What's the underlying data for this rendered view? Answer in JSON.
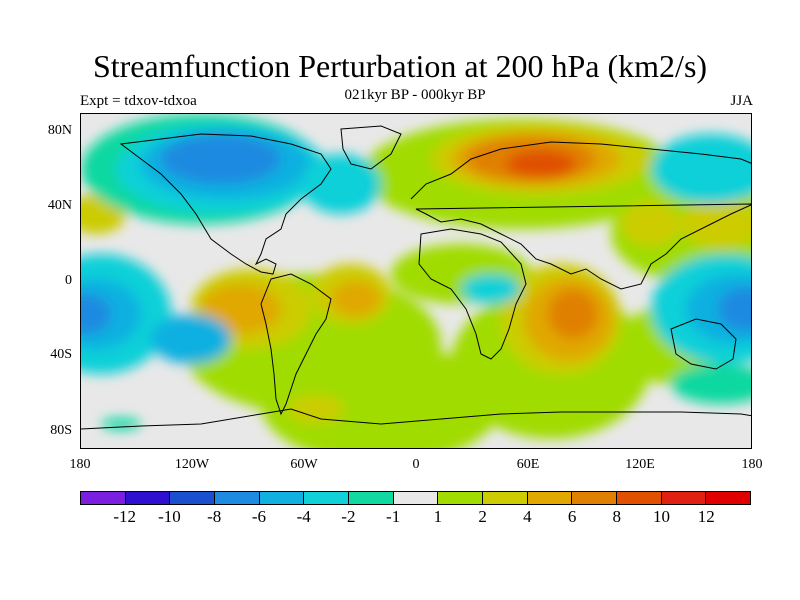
{
  "title": "Streamfunction Perturbation at 200 hPa (km2/s)",
  "subtitle": "021kyr BP - 000kyr BP",
  "left_label": "Expt = tdxov-tdxoa",
  "right_label": "JJA",
  "lat_labels": [
    "80N",
    "40N",
    "0",
    "40S",
    "80S"
  ],
  "lon_labels": [
    "180",
    "120W",
    "60W",
    "0",
    "60E",
    "120E",
    "180"
  ],
  "colorbar": {
    "colors": [
      "#7a1fe0",
      "#3010d0",
      "#1a50d0",
      "#1e8ae0",
      "#10b0e0",
      "#10d0d8",
      "#10d8a0",
      "#e8e8e8",
      "#a0dc00",
      "#cccc00",
      "#e0a800",
      "#e08000",
      "#e05000",
      "#e02010",
      "#e00000"
    ],
    "labels": [
      "-12",
      "-10",
      "-8",
      "-6",
      "-4",
      "-2",
      "-1",
      "1",
      "2",
      "4",
      "6",
      "8",
      "10",
      "12"
    ]
  }
}
